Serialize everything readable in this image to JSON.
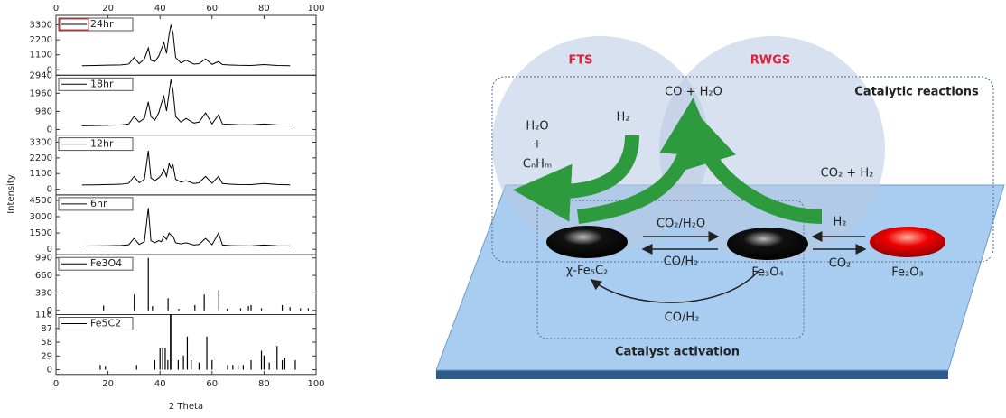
{
  "figure": {
    "xlabel": "2 Theta",
    "ylabel": "Intensity"
  },
  "chart_data": [
    {
      "type": "line",
      "xlim": [
        0,
        100
      ],
      "xticks": [
        0,
        20,
        40,
        60,
        80,
        100
      ],
      "ylim": [
        -400,
        4000
      ],
      "yticks": [
        0,
        1100,
        2200,
        3300
      ],
      "x": [
        10,
        15,
        20,
        25,
        28,
        30,
        32,
        34,
        35.5,
        36.5,
        38,
        39.5,
        40.5,
        41.5,
        42.5,
        43.5,
        44.2,
        45,
        46,
        48,
        50,
        53,
        55,
        57.5,
        60,
        62.5,
        64,
        67,
        70,
        75,
        80,
        85,
        90
      ],
      "series": [
        {
          "name": "24hr",
          "color": "#000000",
          "values": [
            300,
            320,
            340,
            360,
            420,
            900,
            450,
            800,
            1600,
            700,
            600,
            1000,
            1500,
            2000,
            1200,
            2600,
            3300,
            2700,
            900,
            500,
            700,
            420,
            450,
            800,
            400,
            600,
            380,
            350,
            330,
            320,
            380,
            320,
            300
          ]
        }
      ]
    },
    {
      "type": "line",
      "xlim": [
        0,
        100
      ],
      "ylim": [
        -300,
        2940
      ],
      "yticks": [
        0,
        980,
        1960,
        2940
      ],
      "x": [
        10,
        15,
        20,
        25,
        28,
        30,
        32,
        34,
        35.5,
        36.5,
        38,
        39.5,
        40.5,
        41.5,
        42.5,
        43.5,
        44.2,
        45,
        46,
        48,
        50,
        53,
        55,
        57.5,
        60,
        62.5,
        64,
        67,
        70,
        75,
        80,
        85,
        90
      ],
      "series": [
        {
          "name": "18hr",
          "color": "#000000",
          "values": [
            200,
            210,
            230,
            250,
            300,
            700,
            400,
            600,
            1500,
            700,
            500,
            900,
            1400,
            1800,
            1000,
            2000,
            2700,
            2100,
            700,
            400,
            600,
            350,
            400,
            900,
            300,
            800,
            300,
            280,
            260,
            250,
            300,
            250,
            240
          ]
        }
      ]
    },
    {
      "type": "line",
      "xlim": [
        0,
        100
      ],
      "ylim": [
        -400,
        3800
      ],
      "yticks": [
        0,
        1100,
        2200,
        3300
      ],
      "x": [
        10,
        15,
        20,
        25,
        28,
        30,
        32,
        34,
        35.5,
        36.5,
        38,
        39.5,
        40.5,
        41.5,
        42.5,
        43.5,
        44.2,
        45,
        46,
        48,
        50,
        53,
        55,
        57.5,
        60,
        62.5,
        64,
        67,
        70,
        75,
        80,
        85,
        90
      ],
      "series": [
        {
          "name": "12hr",
          "color": "#000000",
          "values": [
            300,
            310,
            330,
            350,
            420,
            900,
            450,
            700,
            2700,
            800,
            600,
            800,
            1000,
            1400,
            900,
            1800,
            1500,
            1700,
            700,
            500,
            600,
            400,
            450,
            900,
            420,
            900,
            400,
            350,
            330,
            320,
            400,
            330,
            310
          ]
        }
      ]
    },
    {
      "type": "line",
      "xlim": [
        0,
        100
      ],
      "ylim": [
        -500,
        5000
      ],
      "yticks": [
        0,
        1500,
        3000,
        4500
      ],
      "x": [
        10,
        15,
        20,
        25,
        28,
        30,
        32,
        34,
        35.5,
        36.5,
        38,
        39.5,
        40.5,
        41.5,
        42.5,
        43.5,
        44.2,
        45,
        46,
        48,
        50,
        53,
        55,
        57.5,
        60,
        62.5,
        64,
        67,
        70,
        75,
        80,
        85,
        90
      ],
      "series": [
        {
          "name": "6hr",
          "color": "#000000",
          "values": [
            300,
            310,
            330,
            360,
            420,
            1000,
            450,
            700,
            3800,
            800,
            600,
            800,
            700,
            1200,
            900,
            1500,
            1300,
            1200,
            600,
            500,
            600,
            400,
            450,
            1000,
            420,
            1500,
            400,
            350,
            330,
            320,
            400,
            330,
            310
          ]
        }
      ]
    },
    {
      "type": "stick",
      "xlim": [
        0,
        100
      ],
      "ylim": [
        -80,
        1050
      ],
      "yticks": [
        0,
        330,
        660,
        990
      ],
      "x": [
        18.3,
        30.1,
        35.5,
        37.1,
        43.1,
        47.2,
        53.4,
        57,
        62.6,
        65.8,
        71,
        74,
        75,
        79,
        87,
        90,
        94,
        97
      ],
      "series": [
        {
          "name": "Fe3O4",
          "color": "#000000",
          "values": [
            90,
            300,
            990,
            80,
            230,
            30,
            100,
            300,
            380,
            30,
            40,
            80,
            100,
            40,
            100,
            60,
            40,
            40
          ]
        }
      ]
    },
    {
      "type": "stick",
      "xlim": [
        0,
        100
      ],
      "xticks": [
        0,
        20,
        40,
        60,
        80,
        100
      ],
      "ylim": [
        -10,
        116
      ],
      "yticks": [
        0,
        29,
        58,
        87,
        116
      ],
      "x": [
        17,
        19,
        31,
        38,
        40,
        41,
        42,
        43,
        44,
        44.5,
        47,
        49,
        50.5,
        52,
        55,
        58,
        60,
        66,
        68,
        70,
        72,
        75,
        79,
        80,
        82,
        85,
        87,
        88,
        92
      ],
      "series": [
        {
          "name": "Fe5C2",
          "color": "#000000",
          "values": [
            10,
            8,
            10,
            20,
            45,
            45,
            45,
            20,
            116,
            116,
            20,
            30,
            70,
            20,
            15,
            70,
            20,
            10,
            10,
            10,
            10,
            20,
            40,
            30,
            15,
            50,
            20,
            25,
            20
          ]
        }
      ]
    }
  ],
  "diagram": {
    "fts": "FTS",
    "rwgs": "RWGS",
    "reactions_label": "Catalytic reactions",
    "co_h2o": "CO + H₂O",
    "h2o": "H₂O",
    "plus": "+",
    "cnhm": "CₙHₘ",
    "h2_left": "H₂",
    "co2_h2": "CO₂ + H₂",
    "co2_h2o": "CO₂/H₂O",
    "co_h2_mid": "CO/H₂",
    "h2_right": "H₂",
    "co2_right": "CO₂",
    "chi_fe5c2": "χ-Fe₅C₂",
    "fe3o4": "Fe₃O₄",
    "fe2o3": "Fe₂O₃",
    "co_h2_bottom": "CO/H₂",
    "activation_label": "Catalyst activation"
  }
}
